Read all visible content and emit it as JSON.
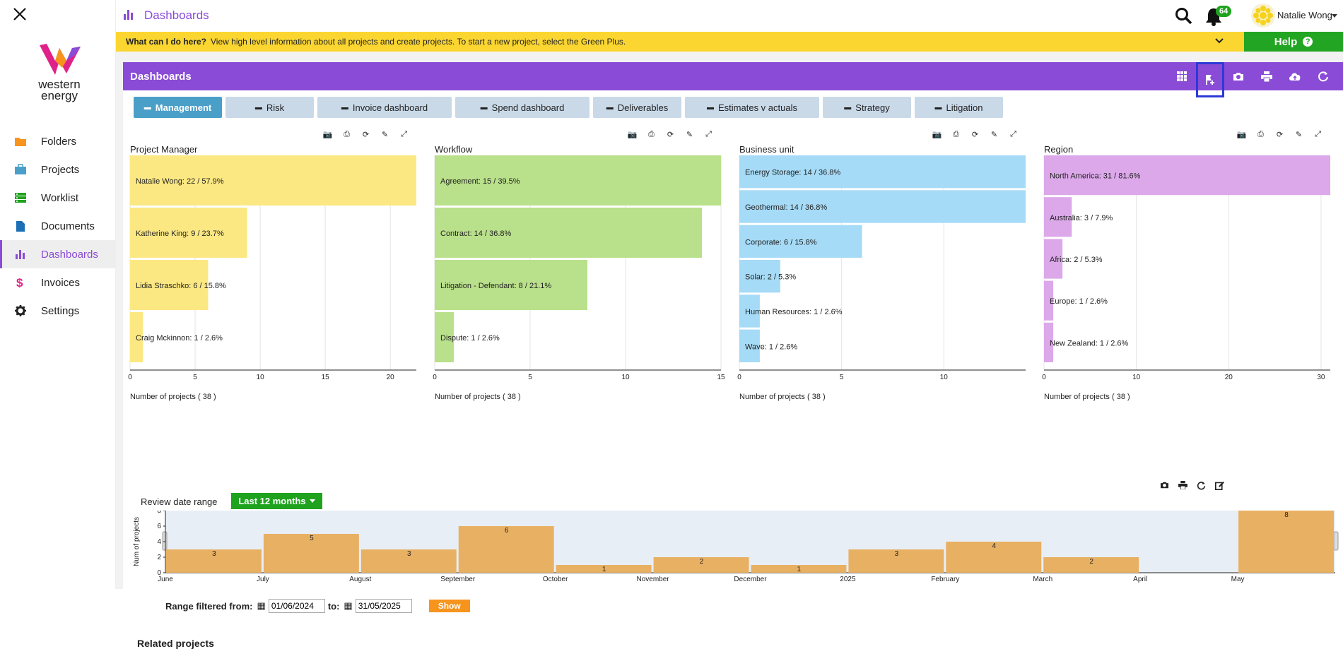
{
  "app": {
    "title": "Dashboards"
  },
  "sidebar": {
    "logo_text_1": "western",
    "logo_text_2": "energy",
    "items": [
      {
        "label": "Folders",
        "icon": "folder-icon",
        "color": "#f7941d"
      },
      {
        "label": "Projects",
        "icon": "briefcase-icon",
        "color": "#4a9fc9"
      },
      {
        "label": "Worklist",
        "icon": "worklist-icon",
        "color": "#1fa31f"
      },
      {
        "label": "Documents",
        "icon": "document-icon",
        "color": "#1a6fb5"
      },
      {
        "label": "Dashboards",
        "icon": "bar-chart-icon",
        "color": "#8a4bd6",
        "active": true
      },
      {
        "label": "Invoices",
        "icon": "dollar-icon",
        "color": "#e0218a"
      },
      {
        "label": "Settings",
        "icon": "gear-icon",
        "color": "#222222"
      }
    ]
  },
  "header": {
    "notifications": "64",
    "user_name": "Natalie Wong"
  },
  "infobar": {
    "question": "What can I do here?",
    "text": "View high level information about all projects and create projects. To start a new project, select the Green Plus.",
    "help_label": "Help",
    "help_q": "?"
  },
  "dashboard": {
    "title": "Dashboards",
    "tools": [
      "grid-icon",
      "add-flag-icon",
      "camera-icon",
      "print-icon",
      "cloud-upload-icon",
      "refresh-icon"
    ],
    "tabs": [
      {
        "label": "Management",
        "active": true,
        "width": 125
      },
      {
        "label": "Risk",
        "width": 125
      },
      {
        "label": "Invoice dashboard",
        "width": 190
      },
      {
        "label": "Spend dashboard",
        "width": 190
      },
      {
        "label": "Deliverables",
        "width": 125
      },
      {
        "label": "Estimates v actuals",
        "width": 190
      },
      {
        "label": "Strategy",
        "width": 125
      },
      {
        "label": "Litigation",
        "width": 125
      }
    ]
  },
  "chart_data": [
    {
      "type": "bar",
      "orientation": "horizontal",
      "title": "Project Manager",
      "xlabel": "Number of projects ( 38 )",
      "color": "#fce882",
      "categories": [
        "Natalie Wong",
        "Katherine King",
        "Lidia Straschko",
        "Craig Mckinnon"
      ],
      "values": [
        22,
        9,
        6,
        1
      ],
      "labels": [
        "Natalie Wong: 22 / 57.9%",
        "Katherine King: 9 / 23.7%",
        "Lidia Straschko: 6 / 15.8%",
        "Craig Mckinnon: 1 / 2.6%"
      ],
      "xlim": [
        0,
        22
      ],
      "ticks": [
        0,
        5,
        10,
        15,
        20
      ]
    },
    {
      "type": "bar",
      "orientation": "horizontal",
      "title": "Workflow",
      "xlabel": "Number of projects ( 38 )",
      "color": "#b9e08a",
      "categories": [
        "Agreement",
        "Contract",
        "Litigation - Defendant",
        "Dispute"
      ],
      "values": [
        15,
        14,
        8,
        1
      ],
      "labels": [
        "Agreement: 15 / 39.5%",
        "Contract: 14 / 36.8%",
        "Litigation - Defendant: 8 / 21.1%",
        "Dispute: 1 / 2.6%"
      ],
      "xlim": [
        0,
        15
      ],
      "ticks": [
        0,
        5,
        10,
        15
      ]
    },
    {
      "type": "bar",
      "orientation": "horizontal",
      "title": "Business unit",
      "xlabel": "Number of projects ( 38 )",
      "color": "#a6dbf7",
      "categories": [
        "Energy Storage",
        "Geothermal",
        "Corporate",
        "Solar",
        "Human Resources",
        "Wave"
      ],
      "values": [
        14,
        14,
        6,
        2,
        1,
        1
      ],
      "labels": [
        "Energy Storage: 14 / 36.8%",
        "Geothermal: 14 / 36.8%",
        "Corporate: 6 / 15.8%",
        "Solar: 2 / 5.3%",
        "Human Resources: 1 / 2.6%",
        "Wave: 1 / 2.6%"
      ],
      "xlim": [
        0,
        14
      ],
      "ticks": [
        0,
        5,
        10
      ]
    },
    {
      "type": "bar",
      "orientation": "horizontal",
      "title": "Region",
      "xlabel": "Number of projects ( 38 )",
      "color": "#dca8ea",
      "categories": [
        "North America",
        "Australia",
        "Africa",
        "Europe",
        "New Zealand"
      ],
      "values": [
        31,
        3,
        2,
        1,
        1
      ],
      "labels": [
        "North America: 31 / 81.6%",
        "Australia: 3 / 7.9%",
        "Africa: 2 / 5.3%",
        "Europe: 1 / 2.6%",
        "New Zealand: 1 / 2.6%"
      ],
      "xlim": [
        0,
        31
      ],
      "ticks": [
        0,
        10,
        20,
        30
      ]
    },
    {
      "type": "bar",
      "title": "Review date range",
      "ylabel": "Num of projects",
      "color": "#e8b062",
      "categories": [
        "June",
        "July",
        "August",
        "September",
        "October",
        "November",
        "December",
        "2025",
        "February",
        "March",
        "April",
        "May"
      ],
      "values": [
        3,
        5,
        3,
        6,
        1,
        2,
        1,
        3,
        4,
        2,
        0,
        8
      ],
      "ylim": [
        0,
        8
      ],
      "yticks": [
        0,
        2,
        4,
        6,
        8
      ]
    }
  ],
  "review": {
    "label": "Review date range",
    "button": "Last 12 months",
    "range_label": "Range filtered from:",
    "from": "01/06/2024",
    "to_label": "to:",
    "to": "31/05/2025",
    "show": "Show"
  },
  "related": "Related projects"
}
